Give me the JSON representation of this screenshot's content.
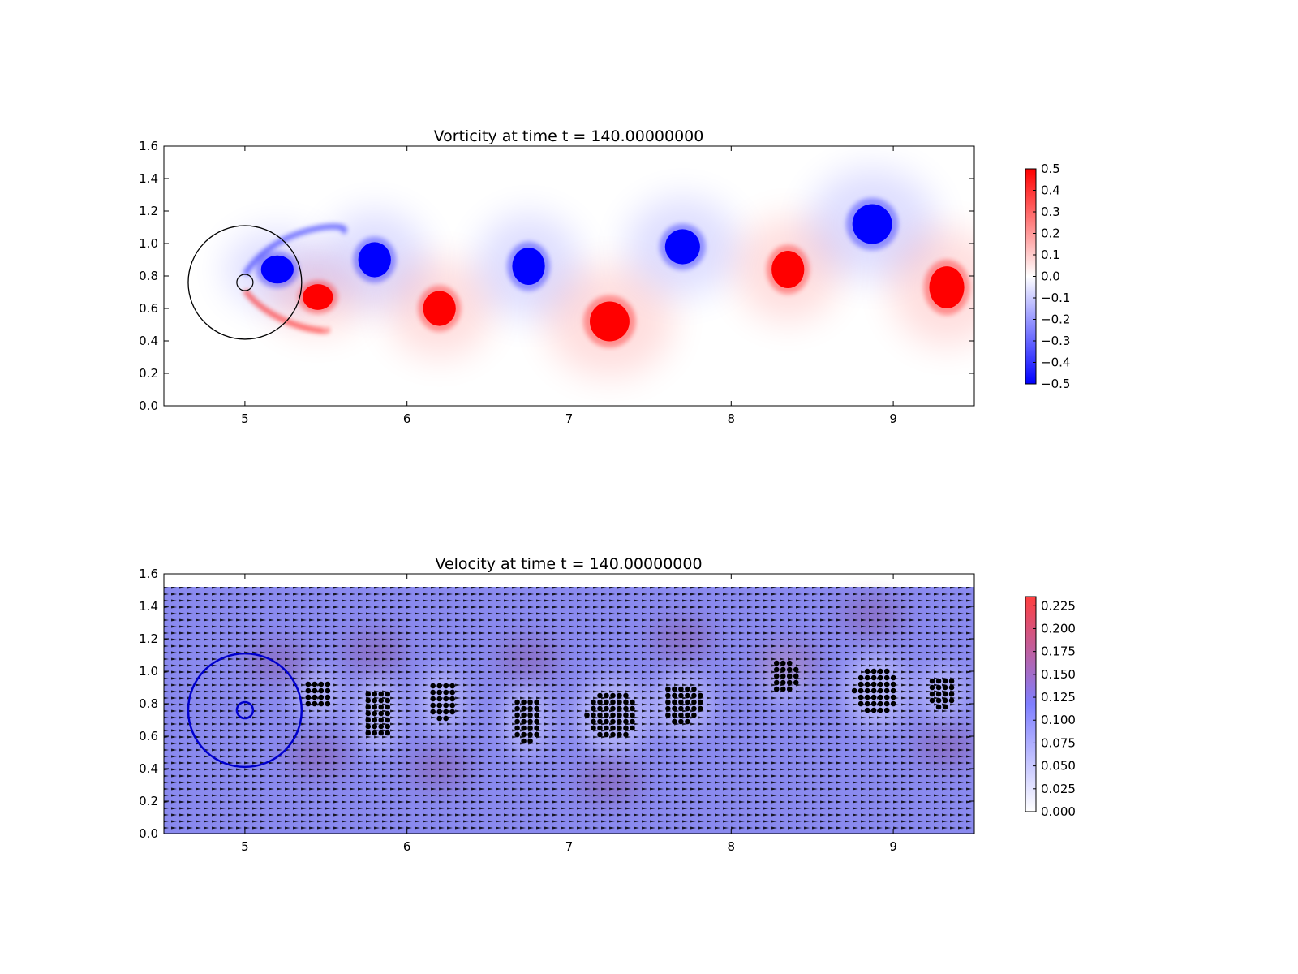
{
  "chart_data": [
    {
      "type": "heatmap",
      "title": "Vorticity at time t =   140.00000000",
      "xlim": [
        4.5,
        9.5
      ],
      "ylim": [
        0.0,
        1.6
      ],
      "xticks": [
        5,
        6,
        7,
        8,
        9
      ],
      "yticks": [
        0.0,
        0.2,
        0.4,
        0.6,
        0.8,
        1.0,
        1.2,
        1.4,
        1.6
      ],
      "colormap": "bwr",
      "colorbar": {
        "range": [
          -0.5,
          0.5
        ],
        "ticks": [
          0.5,
          0.4,
          0.3,
          0.2,
          0.1,
          0.0,
          -0.1,
          -0.2,
          -0.3,
          -0.4,
          -0.5
        ],
        "tick_labels": [
          "0.5",
          "0.4",
          "0.3",
          "0.2",
          "0.1",
          "0.0",
          "−0.1",
          "−0.2",
          "−0.3",
          "−0.4",
          "−0.5"
        ],
        "low_color": "#0000ff",
        "mid_color": "#ffffff",
        "high_color": "#ff0000"
      },
      "body": {
        "center": [
          5.0,
          0.76
        ],
        "radius": 0.05
      },
      "outer_circle": {
        "center": [
          5.0,
          0.76
        ],
        "radius": 0.35
      },
      "vortices": [
        {
          "x": 5.2,
          "y": 0.84,
          "value": -0.5,
          "rx": 0.14,
          "ry": 0.12
        },
        {
          "x": 5.45,
          "y": 0.67,
          "value": 0.5,
          "rx": 0.13,
          "ry": 0.11
        },
        {
          "x": 5.8,
          "y": 0.9,
          "value": -0.5,
          "rx": 0.14,
          "ry": 0.15
        },
        {
          "x": 6.2,
          "y": 0.6,
          "value": 0.5,
          "rx": 0.14,
          "ry": 0.15
        },
        {
          "x": 6.75,
          "y": 0.86,
          "value": -0.5,
          "rx": 0.14,
          "ry": 0.16
        },
        {
          "x": 7.25,
          "y": 0.52,
          "value": 0.5,
          "rx": 0.17,
          "ry": 0.17
        },
        {
          "x": 7.7,
          "y": 0.98,
          "value": -0.5,
          "rx": 0.15,
          "ry": 0.15
        },
        {
          "x": 8.35,
          "y": 0.84,
          "value": 0.5,
          "rx": 0.14,
          "ry": 0.16
        },
        {
          "x": 8.87,
          "y": 1.12,
          "value": -0.5,
          "rx": 0.17,
          "ry": 0.17
        },
        {
          "x": 9.33,
          "y": 0.73,
          "value": 0.5,
          "rx": 0.15,
          "ry": 0.18
        }
      ]
    },
    {
      "type": "heatmap",
      "title": "Velocity at time t =   140.00000000",
      "xlim": [
        4.5,
        9.5
      ],
      "ylim": [
        0.0,
        1.6
      ],
      "xticks": [
        5,
        6,
        7,
        8,
        9
      ],
      "yticks": [
        0.0,
        0.2,
        0.4,
        0.6,
        0.8,
        1.0,
        1.2,
        1.4,
        1.6
      ],
      "field_top": 1.52,
      "colormap": "white-blue-red",
      "colorbar": {
        "range": [
          0.0,
          0.235
        ],
        "ticks": [
          0.225,
          0.2,
          0.175,
          0.15,
          0.125,
          0.1,
          0.075,
          0.05,
          0.025,
          0.0
        ],
        "tick_labels": [
          "0.225",
          "0.200",
          "0.175",
          "0.150",
          "0.125",
          "0.100",
          "0.075",
          "0.050",
          "0.025",
          "0.000"
        ],
        "low_color": "#ffffff",
        "mid_color": "#7f7fff",
        "high_color": "#ff3f3f"
      },
      "quiver_color": "#000000",
      "body": {
        "center": [
          5.0,
          0.76
        ],
        "radius": 0.05
      },
      "outer_circle": {
        "center": [
          5.0,
          0.76
        ],
        "radius": 0.35
      },
      "marker_color": "#0000cc",
      "point_clusters": [
        {
          "x": 5.45,
          "y": 0.86,
          "rx": 0.1,
          "ry": 0.1
        },
        {
          "x": 5.82,
          "y": 0.74,
          "rx": 0.1,
          "ry": 0.16
        },
        {
          "x": 6.22,
          "y": 0.82,
          "rx": 0.1,
          "ry": 0.13
        },
        {
          "x": 6.74,
          "y": 0.7,
          "rx": 0.1,
          "ry": 0.15
        },
        {
          "x": 7.27,
          "y": 0.73,
          "rx": 0.16,
          "ry": 0.16
        },
        {
          "x": 7.7,
          "y": 0.8,
          "rx": 0.13,
          "ry": 0.13
        },
        {
          "x": 8.33,
          "y": 0.98,
          "rx": 0.09,
          "ry": 0.11
        },
        {
          "x": 8.9,
          "y": 0.88,
          "rx": 0.14,
          "ry": 0.16
        },
        {
          "x": 9.3,
          "y": 0.87,
          "rx": 0.1,
          "ry": 0.11
        }
      ]
    }
  ]
}
